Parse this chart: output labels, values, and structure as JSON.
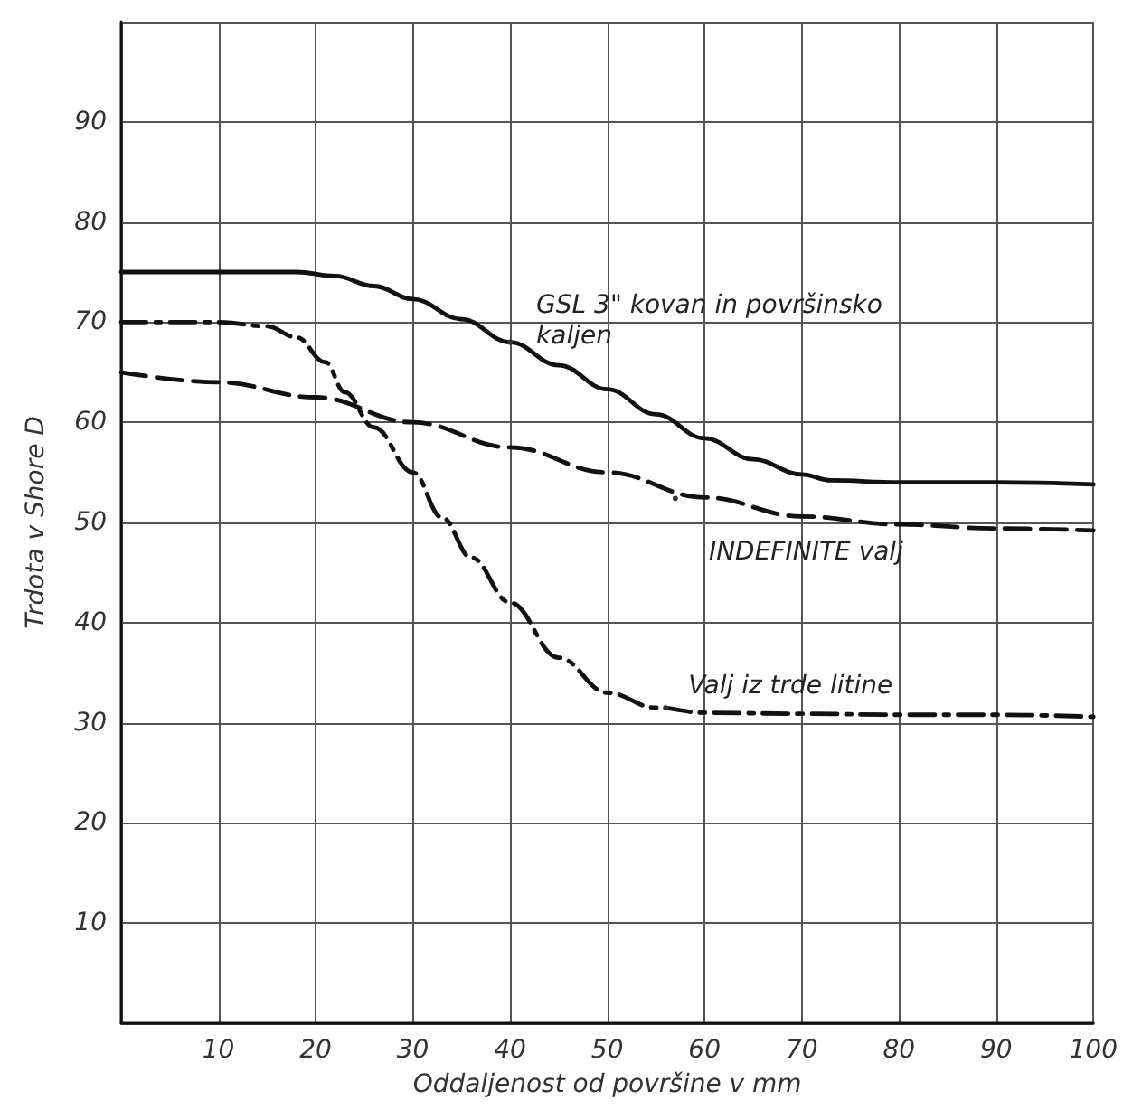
{
  "chart_data": {
    "type": "line",
    "xlabel": "Oddaljenost od površine v mm",
    "ylabel": "Trdota v Shore D",
    "xlim": [
      0,
      100
    ],
    "ylim": [
      0,
      100
    ],
    "xticks": [
      {
        "value": 0,
        "label": null
      },
      10,
      20,
      30,
      40,
      50,
      60,
      70,
      80,
      90,
      100
    ],
    "yticks": [
      {
        "value": 0,
        "label": null
      },
      10,
      20,
      30,
      40,
      50,
      60,
      70,
      80,
      90,
      {
        "value": 100,
        "label": null
      }
    ],
    "grid": true,
    "marker": "none",
    "series": [
      {
        "color": "#111111",
        "line_style": "solid",
        "x": [
          0,
          10,
          18,
          22,
          26,
          30,
          35,
          40,
          45,
          50,
          55,
          60,
          65,
          70,
          73,
          80,
          90,
          100
        ],
        "values": [
          75,
          75,
          75,
          74.6,
          73.6,
          72.3,
          70.3,
          68,
          65.7,
          63.3,
          60.8,
          58.4,
          56.3,
          54.8,
          54.2,
          54,
          54,
          53.8
        ]
      },
      {
        "color": "#111111",
        "line_style": "dashed",
        "x": [
          0,
          10,
          20,
          30,
          40,
          50,
          60,
          70,
          80,
          90,
          100
        ],
        "values": [
          65,
          64,
          62.5,
          60,
          57.5,
          55,
          52.5,
          50.6,
          49.8,
          49.4,
          49.2
        ]
      },
      {
        "color": "#111111",
        "line_style": "dashdot",
        "x": [
          0,
          10,
          15,
          18,
          21,
          23,
          26,
          30,
          33,
          36,
          40,
          45,
          50,
          55,
          60,
          70,
          80,
          90,
          100
        ],
        "values": [
          70,
          70,
          69.6,
          68.5,
          66,
          63,
          59.5,
          55,
          50.5,
          46.5,
          42,
          36.5,
          33,
          31.5,
          31,
          30.9,
          30.8,
          30.8,
          30.6
        ]
      }
    ],
    "annotations": [
      {
        "text": "GSL 3\" kovan in površinsko kaljen",
        "x": 40,
        "y": 68
      },
      {
        "text": "INDEFINITE valj",
        "x": 57,
        "y": 52.4
      },
      {
        "text": "Valj iz trde litine",
        "x": 56,
        "y": 31.5
      }
    ]
  }
}
